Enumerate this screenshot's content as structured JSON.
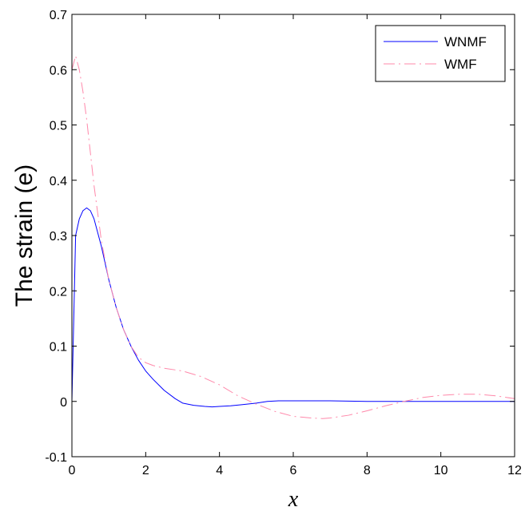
{
  "chart_data": {
    "type": "line",
    "title": "",
    "xlabel": "x",
    "ylabel": "The strain (e)",
    "xlim": [
      0,
      12
    ],
    "ylim": [
      -0.1,
      0.7
    ],
    "x_ticks": [
      0,
      2,
      4,
      6,
      8,
      10,
      12
    ],
    "x_tick_labels": [
      "0",
      "2",
      "4",
      "6",
      "8",
      "10",
      "12"
    ],
    "y_ticks": [
      -0.1,
      0,
      0.1,
      0.2,
      0.3,
      0.4,
      0.5,
      0.6,
      0.7
    ],
    "y_tick_labels": [
      "-0.1",
      "0",
      "0.1",
      "0.2",
      "0.3",
      "0.4",
      "0.5",
      "0.6",
      "0.7"
    ],
    "grid": false,
    "legend_position": "top-right",
    "series": [
      {
        "name": "WNMF",
        "color": "#0000ff",
        "line_style": "solid",
        "x": [
          0,
          0.1,
          0.2,
          0.3,
          0.4,
          0.5,
          0.6,
          0.7,
          0.8,
          1.0,
          1.2,
          1.4,
          1.6,
          1.8,
          2.0,
          2.2,
          2.5,
          2.8,
          3.0,
          3.3,
          3.6,
          3.8,
          4.0,
          4.3,
          4.6,
          5.0,
          5.3,
          5.6,
          6.0,
          6.5,
          7.0,
          8.0,
          9.0,
          10.0,
          11.0,
          12.0
        ],
        "y": [
          0.0,
          0.3,
          0.33,
          0.345,
          0.35,
          0.345,
          0.33,
          0.305,
          0.28,
          0.22,
          0.17,
          0.13,
          0.1,
          0.075,
          0.055,
          0.04,
          0.02,
          0.005,
          -0.003,
          -0.007,
          -0.009,
          -0.01,
          -0.009,
          -0.008,
          -0.006,
          -0.003,
          0.0,
          0.001,
          0.001,
          0.001,
          0.001,
          0.0,
          0.0,
          0.0,
          0.0,
          0.0
        ]
      },
      {
        "name": "WMF",
        "color": "#ff88aa",
        "line_style": "dashed",
        "x": [
          0,
          0.1,
          0.2,
          0.3,
          0.4,
          0.5,
          0.6,
          0.7,
          0.8,
          1.0,
          1.2,
          1.4,
          1.6,
          1.8,
          2.0,
          2.2,
          2.5,
          3.0,
          3.5,
          4.0,
          4.5,
          5.0,
          5.5,
          6.0,
          6.5,
          6.8,
          7.0,
          7.5,
          8.0,
          8.5,
          9.0,
          9.5,
          10.0,
          10.5,
          11.0,
          11.5,
          12.0
        ],
        "y": [
          0.6,
          0.625,
          0.6,
          0.56,
          0.51,
          0.45,
          0.39,
          0.34,
          0.29,
          0.22,
          0.17,
          0.13,
          0.1,
          0.08,
          0.07,
          0.065,
          0.06,
          0.055,
          0.045,
          0.03,
          0.01,
          -0.005,
          -0.018,
          -0.027,
          -0.03,
          -0.031,
          -0.03,
          -0.025,
          -0.017,
          -0.008,
          0.0,
          0.007,
          0.011,
          0.013,
          0.013,
          0.01,
          0.005
        ]
      }
    ]
  }
}
